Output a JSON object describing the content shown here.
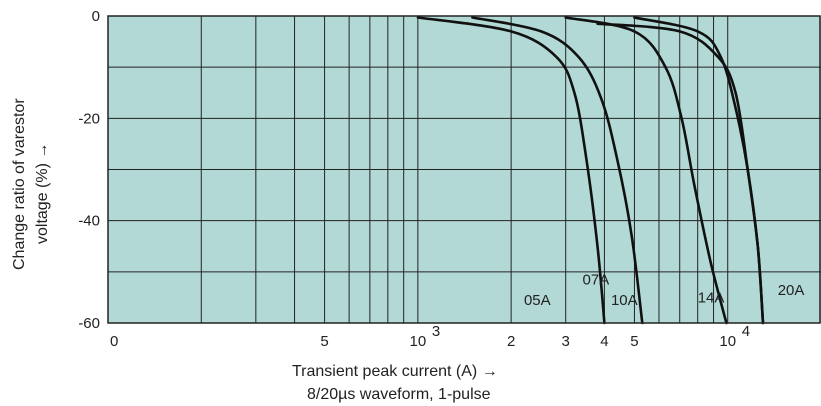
{
  "chart_data": {
    "type": "line",
    "x_scale": "log",
    "xlim": [
      100,
      20000
    ],
    "ylim": [
      -60,
      0
    ],
    "grid": true,
    "plot_background": "#b3d9d6",
    "grid_color": "#222222",
    "curve_color": "#111111",
    "xlabel": "Transient peak current (A) →",
    "xlabel_line2": "8/20µs waveform, 1-pulse",
    "ylabel": "Change ratio of varestor",
    "ylabel_line2": "voltage (%)  →",
    "y_ticks": [
      {
        "value": 0,
        "label": "0"
      },
      {
        "value": -20,
        "label": "-20"
      },
      {
        "value": -40,
        "label": "-40"
      },
      {
        "value": -60,
        "label": "-60"
      }
    ],
    "x_ticks": [
      {
        "value": 100,
        "label": "0"
      },
      {
        "value": 500,
        "label": "5"
      },
      {
        "value": 1000,
        "label": "10",
        "exp": "3"
      },
      {
        "value": 2000,
        "label": "2"
      },
      {
        "value": 3000,
        "label": "3"
      },
      {
        "value": 4000,
        "label": "4"
      },
      {
        "value": 5000,
        "label": "5"
      },
      {
        "value": 10000,
        "label": "10",
        "exp": "4"
      }
    ],
    "series": [
      {
        "name": "05A",
        "points": [
          [
            1000,
            -0.3
          ],
          [
            2000,
            -3
          ],
          [
            2800,
            -8
          ],
          [
            3200,
            -15
          ],
          [
            3500,
            -28
          ],
          [
            3800,
            -45
          ],
          [
            4000,
            -60
          ]
        ]
      },
      {
        "name": "07A",
        "points": [
          [
            1500,
            -0.3
          ],
          [
            2500,
            -3
          ],
          [
            3300,
            -8
          ],
          [
            3900,
            -16
          ],
          [
            4400,
            -28
          ],
          [
            4900,
            -43
          ],
          [
            5300,
            -60
          ]
        ]
      },
      {
        "name": "10A",
        "points": [
          [
            3000,
            -0.3
          ],
          [
            5000,
            -3
          ],
          [
            6300,
            -10
          ],
          [
            7100,
            -20
          ],
          [
            7800,
            -33
          ],
          [
            8800,
            -48
          ],
          [
            9900,
            -60
          ]
        ]
      },
      {
        "name": "14A",
        "points": [
          [
            5000,
            -0.3
          ],
          [
            8000,
            -3
          ],
          [
            9500,
            -8
          ],
          [
            10600,
            -18
          ],
          [
            11600,
            -30
          ],
          [
            12500,
            -45
          ],
          [
            13000,
            -60
          ]
        ]
      },
      {
        "name": "20A",
        "points": [
          [
            3800,
            -1.5
          ],
          [
            7000,
            -3
          ],
          [
            9300,
            -8
          ],
          [
            10600,
            -15
          ],
          [
            11600,
            -30
          ],
          [
            12500,
            -45
          ],
          [
            13000,
            -60
          ]
        ]
      }
    ],
    "labels": [
      {
        "text": "07A",
        "x": 3400,
        "y": -52.5
      },
      {
        "text": "05A",
        "x": 2200,
        "y": -56.5
      },
      {
        "text": "10A",
        "x": 4200,
        "y": -56.5
      },
      {
        "text": "14A",
        "x": 8000,
        "y": -56
      },
      {
        "text": "20A",
        "x": 14500,
        "y": -54.5
      }
    ]
  }
}
